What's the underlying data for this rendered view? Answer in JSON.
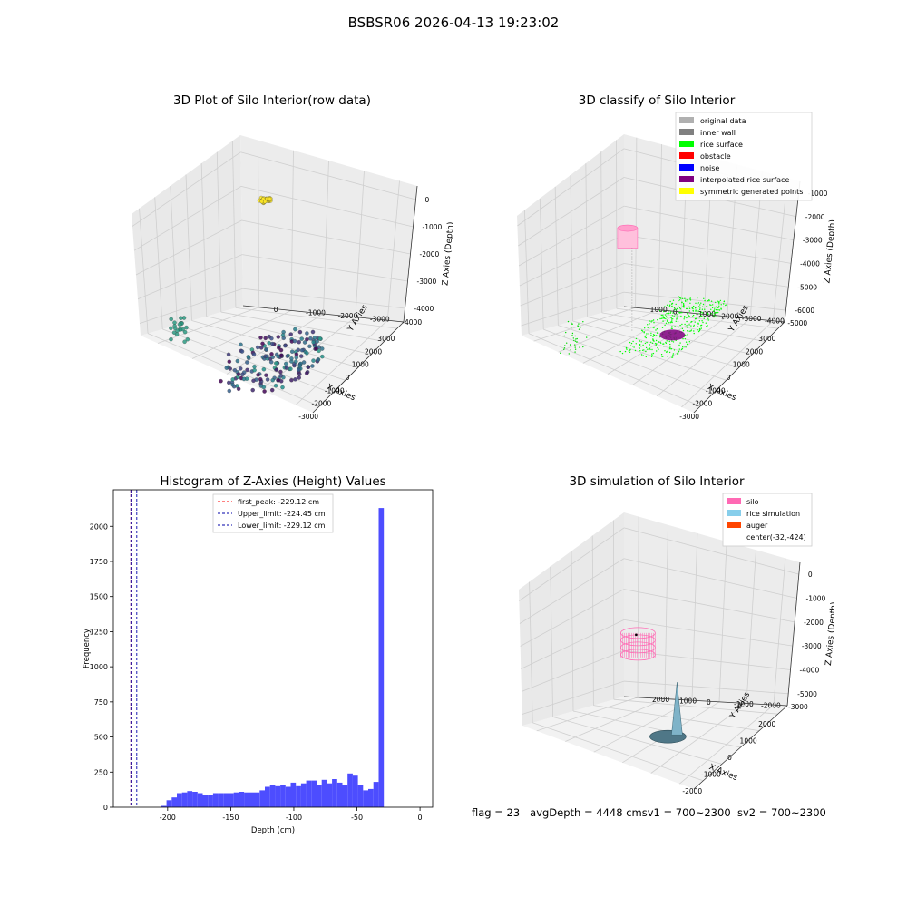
{
  "suptitle": "BSBSR06 2026-04-13 19:23:02",
  "footer": {
    "flag": "flag = 23",
    "avg_depth": "avgDepth = 4448 cm",
    "sv1": "sv1 = 700~2300",
    "sv2": "sv2 = 700~2300"
  },
  "chart_data": [
    {
      "id": "raw3d",
      "type": "scatter",
      "projection": "3d",
      "title": "3D Plot of Silo Interior(row data)",
      "xlabel": "X Axies",
      "ylabel": "Y Axies",
      "zlabel": "Z Axies (Depth)",
      "xticks": [
        "-3000",
        "-2000",
        "-1000",
        "0",
        "1000",
        "2000",
        "3000"
      ],
      "yticks": [
        "0",
        "-1000",
        "-2000",
        "-3000",
        "-4000"
      ],
      "zticks": [
        "0",
        "-1000",
        "-2000",
        "-3000",
        "-4000"
      ],
      "xlim": [
        -3400,
        3200
      ],
      "ylim": [
        -4400,
        600
      ],
      "zlim": [
        -4700,
        300
      ],
      "colormap": "viridis",
      "point_groups": [
        {
          "cx": -1000,
          "cy": -2000,
          "cz": -4300,
          "rx": 2300,
          "ry": 1400,
          "n": 180,
          "zspread": 250
        },
        {
          "cx": -2800,
          "cy": 200,
          "cz": -2500,
          "rx": 200,
          "ry": 300,
          "n": 22,
          "zspread": 800
        },
        {
          "cx": 1800,
          "cy": -300,
          "cz": 0,
          "rx": 180,
          "ry": 180,
          "n": 30,
          "zspread": 60
        }
      ]
    },
    {
      "id": "classify3d",
      "type": "scatter",
      "projection": "3d",
      "title": "3D classify of Silo Interior",
      "xlabel": "X Axies",
      "ylabel": "Y Axies",
      "zlabel": "Z Axies (Depth)",
      "xticks": [
        "-3000",
        "-2000",
        "-1000",
        "0",
        "1000",
        "2000",
        "3000"
      ],
      "yticks": [
        "1000",
        "0",
        "-1000",
        "-2000",
        "-3000",
        "-4000",
        "-5000"
      ],
      "zticks": [
        "-1000",
        "-2000",
        "-3000",
        "-4000",
        "-5000",
        "-6000"
      ],
      "xlim": [
        -3400,
        3200
      ],
      "ylim": [
        -5400,
        1400
      ],
      "zlim": [
        -6800,
        200
      ],
      "legend": [
        {
          "label": "original data",
          "color": "#b0b0b0"
        },
        {
          "label": "inner wall",
          "color": "#808080"
        },
        {
          "label": "rice surface",
          "color": "#00ff00"
        },
        {
          "label": "obstacle",
          "color": "#ff0000"
        },
        {
          "label": "noise",
          "color": "#0000ff"
        },
        {
          "label": "interpolated rice surface",
          "color": "#800080"
        },
        {
          "label": "symmetric generated points",
          "color": "#ffff00"
        }
      ],
      "legend_loc": "upper right"
    },
    {
      "id": "hist",
      "type": "bar",
      "title": "Histogram of Z-Axies (Height) Values",
      "xlabel": "Depth (cm)",
      "ylabel": "Frequency",
      "xlim": [
        -243,
        10
      ],
      "ylim": [
        0,
        2260
      ],
      "xticks": [
        -200,
        -150,
        -100,
        -50,
        0
      ],
      "yticks": [
        0,
        250,
        500,
        750,
        1000,
        1250,
        1500,
        1750,
        2000
      ],
      "bin_start": -205,
      "bin_width": 4.1,
      "counts": [
        10,
        50,
        70,
        100,
        105,
        115,
        110,
        100,
        85,
        90,
        100,
        100,
        100,
        100,
        105,
        110,
        105,
        105,
        105,
        120,
        145,
        155,
        150,
        160,
        145,
        175,
        150,
        170,
        190,
        190,
        160,
        195,
        170,
        200,
        175,
        160,
        240,
        225,
        155,
        120,
        130,
        180,
        2130
      ],
      "bar_color": "#4d4dff",
      "lines": [
        {
          "label": "first_peak: -229.12 cm",
          "x": -229.12,
          "color": "#ff0000"
        },
        {
          "label": "Upper_limit: -224.45 cm",
          "x": -224.45,
          "color": "#0000aa"
        },
        {
          "label": "Lower_limit: -229.12 cm",
          "x": -229.12,
          "color": "#0000aa"
        }
      ],
      "legend_loc": "upper center"
    },
    {
      "id": "sim3d",
      "type": "surface",
      "projection": "3d",
      "title": "3D simulation of Silo Interior",
      "xlabel": "X Axies",
      "ylabel": "Y Axies",
      "zlabel": "Z Axies (Depth)",
      "xticks": [
        "-2000",
        "-1000",
        "0",
        "1000",
        "2000"
      ],
      "yticks": [
        "2000",
        "1000",
        "0",
        "-1000",
        "-2000",
        "-3000"
      ],
      "zticks": [
        "0",
        "-1000",
        "-2000",
        "-3000",
        "-4000",
        "-5000"
      ],
      "xlim": [
        -2600,
        2600
      ],
      "ylim": [
        -3300,
        2300
      ],
      "zlim": [
        -5300,
        400
      ],
      "legend": [
        {
          "label": "silo",
          "color": "#ff69b4"
        },
        {
          "label": "rice simulation",
          "color": "#87ceeb"
        },
        {
          "label": "auger",
          "color": "#ff4500"
        },
        {
          "label": "center(-32,-424)",
          "color": ""
        }
      ],
      "center": [
        -32,
        -424
      ],
      "legend_loc": "upper right"
    }
  ]
}
